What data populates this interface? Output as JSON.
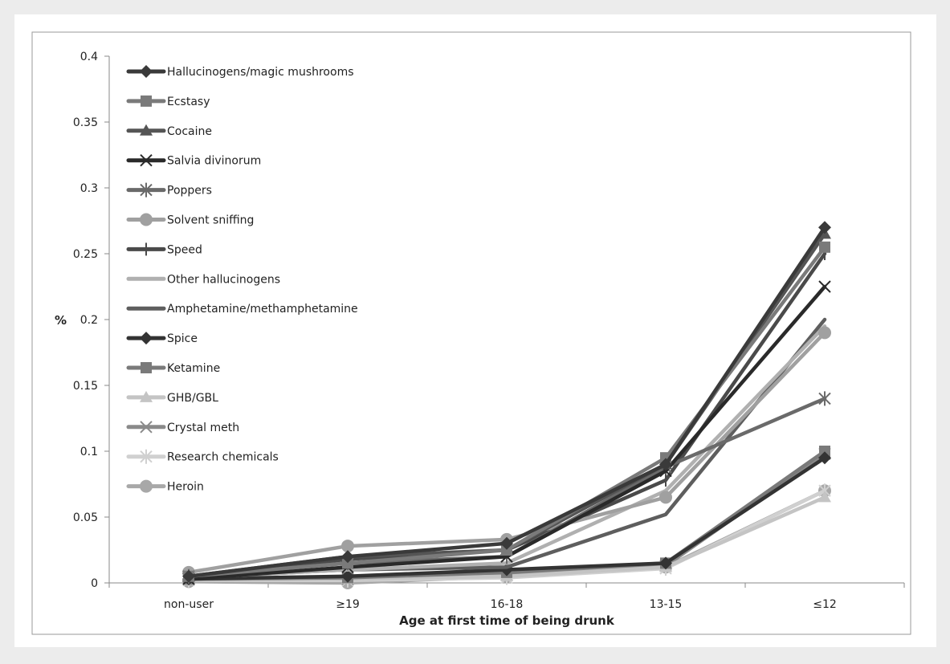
{
  "chart_data": {
    "type": "line",
    "title": "",
    "xlabel": "Age at first time of being drunk",
    "ylabel": "%",
    "categories": [
      "non-user",
      "≥19",
      "16-18",
      "13-15",
      "≤12"
    ],
    "ylim": [
      0,
      0.4
    ],
    "yticks": [
      "0",
      "0.05",
      "0.1",
      "0.15",
      "0.2",
      "0.25",
      "0.3",
      "0.35",
      "0.4"
    ],
    "legend_position": "top-left inside",
    "grid": false,
    "series": [
      {
        "name": "Hallucinogens/magic mushrooms",
        "values": [
          0.005,
          0.02,
          0.03,
          0.09,
          0.27
        ],
        "color": "#3a3a3a",
        "marker": "diamond"
      },
      {
        "name": "Ecstasy",
        "values": [
          0.005,
          0.015,
          0.025,
          0.095,
          0.255
        ],
        "color": "#7a7a7a",
        "marker": "square"
      },
      {
        "name": "Cocaine",
        "values": [
          0.005,
          0.02,
          0.025,
          0.09,
          0.265
        ],
        "color": "#555555",
        "marker": "triangle"
      },
      {
        "name": "Salvia divinorum",
        "values": [
          0.003,
          0.012,
          0.02,
          0.085,
          0.225
        ],
        "color": "#2a2a2a",
        "marker": "x"
      },
      {
        "name": "Poppers",
        "values": [
          0.005,
          0.015,
          0.02,
          0.088,
          0.14
        ],
        "color": "#6a6a6a",
        "marker": "star"
      },
      {
        "name": "Solvent sniffing",
        "values": [
          0.008,
          0.028,
          0.033,
          0.065,
          0.19
        ],
        "color": "#a0a0a0",
        "marker": "circle"
      },
      {
        "name": "Speed",
        "values": [
          0.004,
          0.018,
          0.025,
          0.078,
          0.25
        ],
        "color": "#4a4a4a",
        "marker": "plus"
      },
      {
        "name": "Other hallucinogens",
        "values": [
          0.004,
          0.01,
          0.015,
          0.07,
          0.195
        ],
        "color": "#b0b0b0",
        "marker": "none"
      },
      {
        "name": "Amphetamine/methamphetamine",
        "values": [
          0.004,
          0.01,
          0.012,
          0.052,
          0.2
        ],
        "color": "#5e5e5e",
        "marker": "none"
      },
      {
        "name": "Spice",
        "values": [
          0.003,
          0.005,
          0.01,
          0.015,
          0.095
        ],
        "color": "#333333",
        "marker": "diamond"
      },
      {
        "name": "Ketamine",
        "values": [
          0.003,
          0.004,
          0.008,
          0.015,
          0.1
        ],
        "color": "#7a7a7a",
        "marker": "square"
      },
      {
        "name": "GHB/GBL",
        "values": [
          0.002,
          0.003,
          0.005,
          0.012,
          0.065
        ],
        "color": "#c4c4c4",
        "marker": "triangle"
      },
      {
        "name": "Crystal meth",
        "values": [
          0.003,
          0.003,
          0.006,
          0.013,
          0.098
        ],
        "color": "#8a8a8a",
        "marker": "x"
      },
      {
        "name": "Research chemicals",
        "values": [
          0.002,
          0.002,
          0.004,
          0.011,
          0.07
        ],
        "color": "#d0d0d0",
        "marker": "star"
      },
      {
        "name": "Heroin",
        "values": [
          0.001,
          0.0,
          0.005,
          0.012,
          0.07
        ],
        "color": "#a8a8a8",
        "marker": "circle"
      }
    ]
  }
}
